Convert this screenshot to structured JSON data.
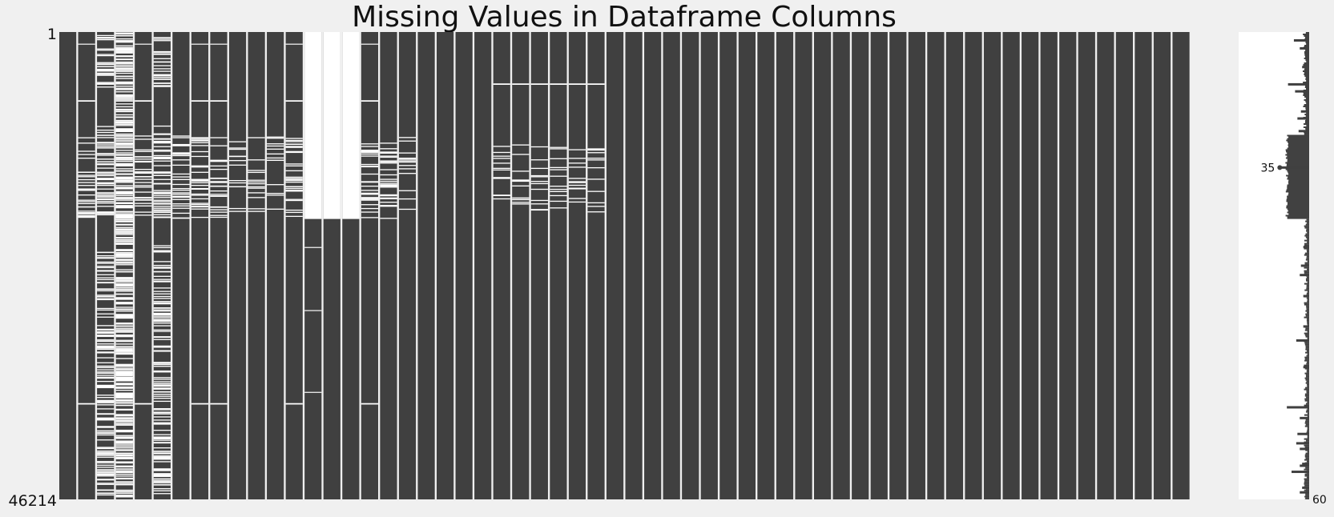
{
  "chart_data": {
    "type": "heatmap",
    "subtype": "missingness-matrix",
    "title": "Missing Values in Dataframe Columns",
    "xlabel": "",
    "ylabel": "",
    "row_count": 46214,
    "y_tick_labels": [
      "1",
      "46214"
    ],
    "column_count": 60,
    "column_labels": [],
    "colors": {
      "present": "#404040",
      "missing": "#ffffff",
      "background": "#f0f0f0",
      "sparkline_fill": "#404040",
      "sparkline_background": "#ffffff"
    },
    "columns": [
      {
        "missing": []
      },
      {
        "missing": [
          [
            0.025,
            0.027
          ],
          [
            0.146,
            0.149
          ],
          [
            0.22,
            0.4
          ],
          [
            0.794,
            0.797
          ]
        ],
        "pattern": "dense"
      },
      {
        "missing": [
          [
            0.0,
            0.02
          ],
          [
            0.035,
            0.12
          ],
          [
            0.2,
            0.4
          ],
          [
            0.45,
            0.996
          ]
        ],
        "pattern": "very-dense"
      },
      {
        "missing": [
          [
            0.0,
            0.996
          ]
        ],
        "pattern": "mostly-missing"
      },
      {
        "missing": [
          [
            0.025,
            0.027
          ],
          [
            0.146,
            0.149
          ],
          [
            0.22,
            0.4
          ],
          [
            0.794,
            0.797
          ]
        ],
        "pattern": "dense"
      },
      {
        "missing": [
          [
            0.0,
            0.02
          ],
          [
            0.035,
            0.12
          ],
          [
            0.2,
            0.4
          ],
          [
            0.45,
            0.996
          ]
        ],
        "pattern": "very-dense"
      },
      {
        "missing": [
          [
            0.22,
            0.4
          ]
        ],
        "pattern": "dense"
      },
      {
        "missing": [
          [
            0.025,
            0.027
          ],
          [
            0.146,
            0.149
          ],
          [
            0.22,
            0.4
          ],
          [
            0.794,
            0.797
          ]
        ],
        "pattern": "dense"
      },
      {
        "missing": [
          [
            0.025,
            0.027
          ],
          [
            0.146,
            0.149
          ],
          [
            0.22,
            0.4
          ],
          [
            0.794,
            0.797
          ]
        ],
        "pattern": "block-dense"
      },
      {
        "missing": [
          [
            0.22,
            0.385
          ]
        ],
        "pattern": "light"
      },
      {
        "missing": [
          [
            0.22,
            0.385
          ]
        ],
        "pattern": "light"
      },
      {
        "missing": [
          [
            0.22,
            0.385
          ]
        ],
        "pattern": "light"
      },
      {
        "missing": [
          [
            0.025,
            0.027
          ],
          [
            0.146,
            0.149
          ],
          [
            0.22,
            0.4
          ],
          [
            0.794,
            0.797
          ]
        ],
        "pattern": "dense"
      },
      {
        "missing": [
          [
            0.0,
            0.4
          ],
          [
            0.46,
            0.462
          ],
          [
            0.595,
            0.597
          ],
          [
            0.77,
            0.772
          ]
        ]
      },
      {
        "missing": [
          [
            0.0,
            0.4
          ]
        ]
      },
      {
        "missing": [
          [
            0.0,
            0.4
          ]
        ]
      },
      {
        "missing": [
          [
            0.025,
            0.027
          ],
          [
            0.146,
            0.149
          ],
          [
            0.22,
            0.4
          ],
          [
            0.794,
            0.797
          ]
        ],
        "pattern": "dense"
      },
      {
        "missing": [
          [
            0.22,
            0.4
          ]
        ],
        "pattern": "dense"
      },
      {
        "missing": [
          [
            0.22,
            0.385
          ]
        ],
        "pattern": "light"
      },
      {
        "missing": []
      },
      {
        "missing": []
      },
      {
        "missing": []
      },
      {
        "missing": []
      },
      {
        "missing": [
          [
            0.11,
            0.113
          ],
          [
            0.24,
            0.39
          ]
        ],
        "pattern": "light"
      },
      {
        "missing": [
          [
            0.11,
            0.113
          ],
          [
            0.24,
            0.39
          ]
        ],
        "pattern": "light"
      },
      {
        "missing": [
          [
            0.11,
            0.113
          ],
          [
            0.24,
            0.39
          ]
        ],
        "pattern": "light"
      },
      {
        "missing": [
          [
            0.11,
            0.113
          ],
          [
            0.24,
            0.39
          ]
        ],
        "pattern": "light"
      },
      {
        "missing": [
          [
            0.11,
            0.113
          ],
          [
            0.24,
            0.39
          ]
        ],
        "pattern": "light"
      },
      {
        "missing": [
          [
            0.11,
            0.113
          ],
          [
            0.24,
            0.39
          ]
        ],
        "pattern": "light"
      },
      {
        "missing": []
      },
      {
        "missing": []
      },
      {
        "missing": []
      },
      {
        "missing": []
      },
      {
        "missing": []
      },
      {
        "missing": []
      },
      {
        "missing": []
      },
      {
        "missing": []
      },
      {
        "missing": []
      },
      {
        "missing": []
      },
      {
        "missing": []
      },
      {
        "missing": []
      },
      {
        "missing": []
      },
      {
        "missing": []
      },
      {
        "missing": []
      },
      {
        "missing": []
      },
      {
        "missing": []
      },
      {
        "missing": []
      },
      {
        "missing": []
      },
      {
        "missing": []
      },
      {
        "missing": []
      },
      {
        "missing": []
      },
      {
        "missing": []
      },
      {
        "missing": []
      },
      {
        "missing": []
      },
      {
        "missing": []
      },
      {
        "missing": []
      },
      {
        "missing": []
      },
      {
        "missing": []
      },
      {
        "missing": []
      },
      {
        "missing": []
      }
    ],
    "sparkline": {
      "description": "non-null value count per row",
      "xlim": [
        0,
        60
      ],
      "labels": [
        {
          "text": "35",
          "value": 35,
          "row_frac": 0.29
        },
        {
          "text": "60",
          "value": 60,
          "row_frac": 1.0
        }
      ],
      "profile": [
        {
          "from": 0.0,
          "to": 0.22,
          "value": 56
        },
        {
          "from": 0.22,
          "to": 0.4,
          "value": 41
        },
        {
          "from": 0.4,
          "to": 1.0,
          "value": 57
        }
      ],
      "dips": [
        {
          "row_frac": 0.018,
          "value": 47
        },
        {
          "row_frac": 0.035,
          "value": 52
        },
        {
          "row_frac": 0.075,
          "value": 54
        },
        {
          "row_frac": 0.112,
          "value": 42
        },
        {
          "row_frac": 0.127,
          "value": 48
        },
        {
          "row_frac": 0.17,
          "value": 53
        },
        {
          "row_frac": 0.185,
          "value": 50
        },
        {
          "row_frac": 0.212,
          "value": 51
        },
        {
          "row_frac": 0.29,
          "value": 35
        },
        {
          "row_frac": 0.46,
          "value": 55
        },
        {
          "row_frac": 0.5,
          "value": 53
        },
        {
          "row_frac": 0.52,
          "value": 52
        },
        {
          "row_frac": 0.565,
          "value": 55
        },
        {
          "row_frac": 0.63,
          "value": 55
        },
        {
          "row_frac": 0.66,
          "value": 49
        },
        {
          "row_frac": 0.715,
          "value": 56
        },
        {
          "row_frac": 0.717,
          "value": 55
        },
        {
          "row_frac": 0.803,
          "value": 41
        },
        {
          "row_frac": 0.826,
          "value": 52
        },
        {
          "row_frac": 0.86,
          "value": 50
        },
        {
          "row_frac": 0.88,
          "value": 49
        },
        {
          "row_frac": 0.892,
          "value": 52
        },
        {
          "row_frac": 0.924,
          "value": 54
        },
        {
          "row_frac": 0.928,
          "value": 52
        },
        {
          "row_frac": 0.941,
          "value": 45
        },
        {
          "row_frac": 0.975,
          "value": 54
        },
        {
          "row_frac": 0.985,
          "value": 52
        }
      ],
      "min_value": 35,
      "max_value": 60
    }
  }
}
